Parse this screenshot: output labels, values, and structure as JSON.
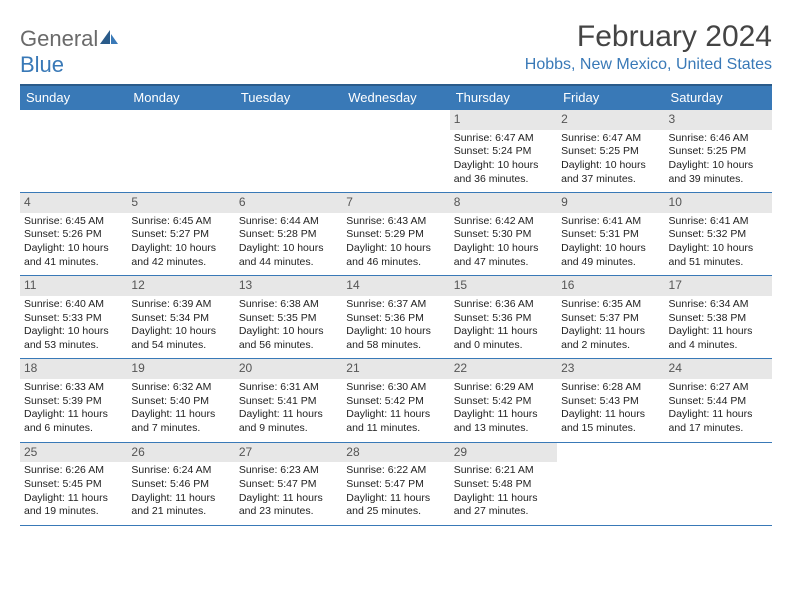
{
  "logo": {
    "part1": "General",
    "part2": "Blue"
  },
  "title": "February 2024",
  "location": "Hobbs, New Mexico, United States",
  "colors": {
    "header_bg": "#3979b7",
    "header_border_top": "#2a5b8a",
    "daynum_bg": "#e7e7e7",
    "cell_border": "#3979b7",
    "brand_gray": "#6a6a6a",
    "brand_blue": "#3979b7"
  },
  "day_labels": [
    "Sunday",
    "Monday",
    "Tuesday",
    "Wednesday",
    "Thursday",
    "Friday",
    "Saturday"
  ],
  "weeks": [
    [
      null,
      null,
      null,
      null,
      {
        "n": "1",
        "sr": "Sunrise: 6:47 AM",
        "ss": "Sunset: 5:24 PM",
        "d1": "Daylight: 10 hours",
        "d2": "and 36 minutes."
      },
      {
        "n": "2",
        "sr": "Sunrise: 6:47 AM",
        "ss": "Sunset: 5:25 PM",
        "d1": "Daylight: 10 hours",
        "d2": "and 37 minutes."
      },
      {
        "n": "3",
        "sr": "Sunrise: 6:46 AM",
        "ss": "Sunset: 5:25 PM",
        "d1": "Daylight: 10 hours",
        "d2": "and 39 minutes."
      }
    ],
    [
      {
        "n": "4",
        "sr": "Sunrise: 6:45 AM",
        "ss": "Sunset: 5:26 PM",
        "d1": "Daylight: 10 hours",
        "d2": "and 41 minutes."
      },
      {
        "n": "5",
        "sr": "Sunrise: 6:45 AM",
        "ss": "Sunset: 5:27 PM",
        "d1": "Daylight: 10 hours",
        "d2": "and 42 minutes."
      },
      {
        "n": "6",
        "sr": "Sunrise: 6:44 AM",
        "ss": "Sunset: 5:28 PM",
        "d1": "Daylight: 10 hours",
        "d2": "and 44 minutes."
      },
      {
        "n": "7",
        "sr": "Sunrise: 6:43 AM",
        "ss": "Sunset: 5:29 PM",
        "d1": "Daylight: 10 hours",
        "d2": "and 46 minutes."
      },
      {
        "n": "8",
        "sr": "Sunrise: 6:42 AM",
        "ss": "Sunset: 5:30 PM",
        "d1": "Daylight: 10 hours",
        "d2": "and 47 minutes."
      },
      {
        "n": "9",
        "sr": "Sunrise: 6:41 AM",
        "ss": "Sunset: 5:31 PM",
        "d1": "Daylight: 10 hours",
        "d2": "and 49 minutes."
      },
      {
        "n": "10",
        "sr": "Sunrise: 6:41 AM",
        "ss": "Sunset: 5:32 PM",
        "d1": "Daylight: 10 hours",
        "d2": "and 51 minutes."
      }
    ],
    [
      {
        "n": "11",
        "sr": "Sunrise: 6:40 AM",
        "ss": "Sunset: 5:33 PM",
        "d1": "Daylight: 10 hours",
        "d2": "and 53 minutes."
      },
      {
        "n": "12",
        "sr": "Sunrise: 6:39 AM",
        "ss": "Sunset: 5:34 PM",
        "d1": "Daylight: 10 hours",
        "d2": "and 54 minutes."
      },
      {
        "n": "13",
        "sr": "Sunrise: 6:38 AM",
        "ss": "Sunset: 5:35 PM",
        "d1": "Daylight: 10 hours",
        "d2": "and 56 minutes."
      },
      {
        "n": "14",
        "sr": "Sunrise: 6:37 AM",
        "ss": "Sunset: 5:36 PM",
        "d1": "Daylight: 10 hours",
        "d2": "and 58 minutes."
      },
      {
        "n": "15",
        "sr": "Sunrise: 6:36 AM",
        "ss": "Sunset: 5:36 PM",
        "d1": "Daylight: 11 hours",
        "d2": "and 0 minutes."
      },
      {
        "n": "16",
        "sr": "Sunrise: 6:35 AM",
        "ss": "Sunset: 5:37 PM",
        "d1": "Daylight: 11 hours",
        "d2": "and 2 minutes."
      },
      {
        "n": "17",
        "sr": "Sunrise: 6:34 AM",
        "ss": "Sunset: 5:38 PM",
        "d1": "Daylight: 11 hours",
        "d2": "and 4 minutes."
      }
    ],
    [
      {
        "n": "18",
        "sr": "Sunrise: 6:33 AM",
        "ss": "Sunset: 5:39 PM",
        "d1": "Daylight: 11 hours",
        "d2": "and 6 minutes."
      },
      {
        "n": "19",
        "sr": "Sunrise: 6:32 AM",
        "ss": "Sunset: 5:40 PM",
        "d1": "Daylight: 11 hours",
        "d2": "and 7 minutes."
      },
      {
        "n": "20",
        "sr": "Sunrise: 6:31 AM",
        "ss": "Sunset: 5:41 PM",
        "d1": "Daylight: 11 hours",
        "d2": "and 9 minutes."
      },
      {
        "n": "21",
        "sr": "Sunrise: 6:30 AM",
        "ss": "Sunset: 5:42 PM",
        "d1": "Daylight: 11 hours",
        "d2": "and 11 minutes."
      },
      {
        "n": "22",
        "sr": "Sunrise: 6:29 AM",
        "ss": "Sunset: 5:42 PM",
        "d1": "Daylight: 11 hours",
        "d2": "and 13 minutes."
      },
      {
        "n": "23",
        "sr": "Sunrise: 6:28 AM",
        "ss": "Sunset: 5:43 PM",
        "d1": "Daylight: 11 hours",
        "d2": "and 15 minutes."
      },
      {
        "n": "24",
        "sr": "Sunrise: 6:27 AM",
        "ss": "Sunset: 5:44 PM",
        "d1": "Daylight: 11 hours",
        "d2": "and 17 minutes."
      }
    ],
    [
      {
        "n": "25",
        "sr": "Sunrise: 6:26 AM",
        "ss": "Sunset: 5:45 PM",
        "d1": "Daylight: 11 hours",
        "d2": "and 19 minutes."
      },
      {
        "n": "26",
        "sr": "Sunrise: 6:24 AM",
        "ss": "Sunset: 5:46 PM",
        "d1": "Daylight: 11 hours",
        "d2": "and 21 minutes."
      },
      {
        "n": "27",
        "sr": "Sunrise: 6:23 AM",
        "ss": "Sunset: 5:47 PM",
        "d1": "Daylight: 11 hours",
        "d2": "and 23 minutes."
      },
      {
        "n": "28",
        "sr": "Sunrise: 6:22 AM",
        "ss": "Sunset: 5:47 PM",
        "d1": "Daylight: 11 hours",
        "d2": "and 25 minutes."
      },
      {
        "n": "29",
        "sr": "Sunrise: 6:21 AM",
        "ss": "Sunset: 5:48 PM",
        "d1": "Daylight: 11 hours",
        "d2": "and 27 minutes."
      },
      null,
      null
    ]
  ]
}
